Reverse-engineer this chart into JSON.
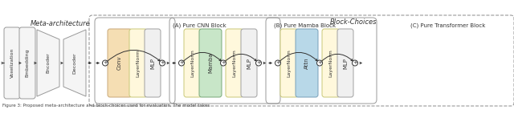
{
  "fig_width": 6.4,
  "fig_height": 1.42,
  "dpi": 100,
  "bg_color": "#ffffff",
  "meta_arch_label": "Meta-architecture",
  "block_choices_label": "Block-Choices",
  "block_a_label": "(A) Pure CNN Block",
  "block_b_label": "(B) Pure Mamba Block",
  "block_c_label": "(C) Pure Transformer Block",
  "caption": "Figure 3: Proposed meta-architecture and block-choices used for evaluation. The model takes",
  "colors": {
    "box_face": "#f5f5f5",
    "box_edge": "#999999",
    "conv_face": "#F5DEB3",
    "conv_edge": "#C8A878",
    "ln_face": "#FFF8DC",
    "ln_edge": "#C8C878",
    "mamba_face": "#C8E6C8",
    "mamba_edge": "#78A878",
    "attn_face": "#B8D8E8",
    "attn_edge": "#78A0B8",
    "mlp_face": "#F0F0F0",
    "mlp_edge": "#A0A0A0",
    "arrow": "#333333",
    "text": "#333333",
    "dashed_edge": "#999999"
  }
}
